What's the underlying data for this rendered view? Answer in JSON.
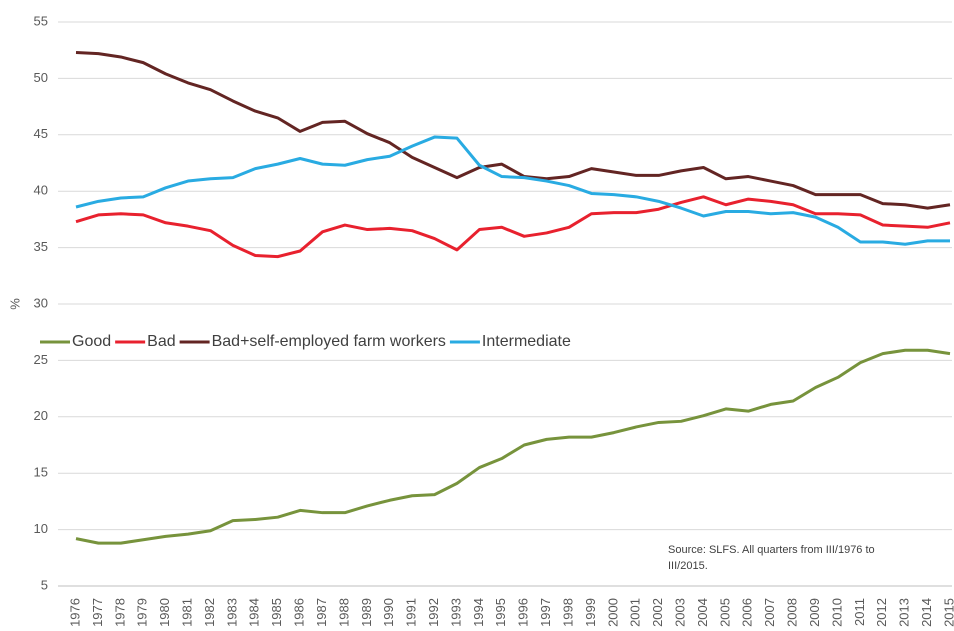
{
  "chart_data": {
    "type": "line",
    "y_label": "%",
    "annotation": [
      "Source: SLFS. All quarters from III/1976 to",
      "III/2015."
    ],
    "x": [
      1976,
      1977,
      1978,
      1979,
      1980,
      1981,
      1982,
      1983,
      1984,
      1985,
      1986,
      1987,
      1988,
      1989,
      1990,
      1991,
      1992,
      1993,
      1994,
      1995,
      1996,
      1997,
      1998,
      1999,
      2000,
      2001,
      2002,
      2003,
      2004,
      2005,
      2006,
      2007,
      2008,
      2009,
      2010,
      2011,
      2012,
      2013,
      2014,
      2015
    ],
    "series": [
      {
        "name": "Good",
        "color": "#77933c",
        "values": [
          9.2,
          8.8,
          8.8,
          9.1,
          9.4,
          9.6,
          9.9,
          10.8,
          10.9,
          11.1,
          11.7,
          11.5,
          11.5,
          12.1,
          12.6,
          13.0,
          13.1,
          14.1,
          15.5,
          16.3,
          17.5,
          18.0,
          18.2,
          18.2,
          18.6,
          19.1,
          19.5,
          19.6,
          20.1,
          20.7,
          20.5,
          21.1,
          21.4,
          22.6,
          23.5,
          24.8,
          25.6,
          25.9,
          25.9,
          25.6
        ]
      },
      {
        "name": "Bad",
        "color": "#e8212e",
        "values": [
          37.3,
          37.9,
          38.0,
          37.9,
          37.2,
          36.9,
          36.5,
          35.2,
          34.3,
          34.2,
          34.7,
          36.4,
          37.0,
          36.6,
          36.7,
          36.5,
          35.8,
          34.8,
          36.6,
          36.8,
          36.0,
          36.3,
          36.8,
          38.0,
          38.1,
          38.1,
          38.4,
          39.0,
          39.5,
          38.8,
          39.3,
          39.1,
          38.8,
          38.0,
          38.0,
          37.9,
          37.0,
          36.9,
          36.8,
          37.2
        ]
      },
      {
        "name": "Bad+self-employed farm workers",
        "color": "#632523",
        "values": [
          52.3,
          52.2,
          51.9,
          51.4,
          50.4,
          49.6,
          49.0,
          48.0,
          47.1,
          46.5,
          45.3,
          46.1,
          46.2,
          45.1,
          44.3,
          43.0,
          42.1,
          41.2,
          42.1,
          42.4,
          41.3,
          41.1,
          41.3,
          42.0,
          41.7,
          41.4,
          41.4,
          41.8,
          42.1,
          41.1,
          41.3,
          40.9,
          40.5,
          39.7,
          39.7,
          39.7,
          38.9,
          38.8,
          38.5,
          38.8
        ]
      },
      {
        "name": "Intermediate",
        "color": "#29abe2",
        "values": [
          38.6,
          39.1,
          39.4,
          39.5,
          40.3,
          40.9,
          41.1,
          41.2,
          42.0,
          42.4,
          42.9,
          42.4,
          42.3,
          42.8,
          43.1,
          44.0,
          44.8,
          44.7,
          42.3,
          41.3,
          41.2,
          40.9,
          40.5,
          39.8,
          39.7,
          39.5,
          39.1,
          38.5,
          37.8,
          38.2,
          38.2,
          38.0,
          38.1,
          37.7,
          36.8,
          35.5,
          35.5,
          35.3,
          35.6,
          35.6
        ]
      }
    ],
    "xlim": [
      1976,
      2015
    ],
    "ylim": [
      5,
      55
    ],
    "yticks": [
      5,
      10,
      15,
      20,
      25,
      30,
      35,
      40,
      45,
      50,
      55
    ],
    "grid": true
  }
}
